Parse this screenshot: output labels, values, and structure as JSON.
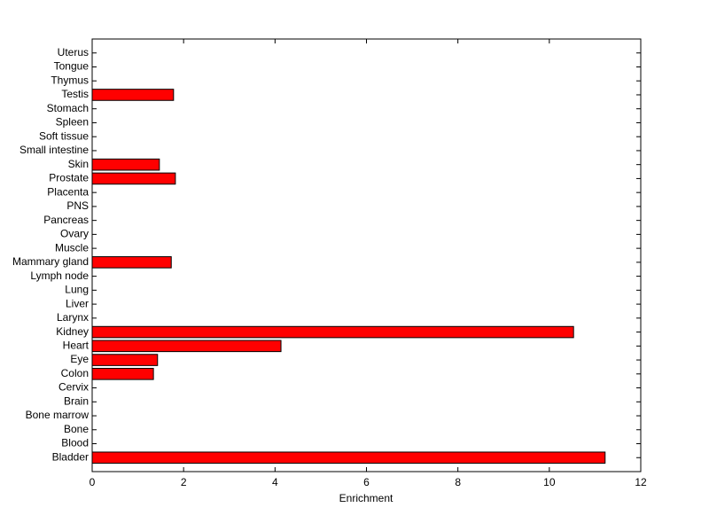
{
  "chart_data": {
    "type": "barh",
    "xlabel": "Enrichment",
    "categories": [
      "Bladder",
      "Blood",
      "Bone",
      "Bone marrow",
      "Brain",
      "Cervix",
      "Colon",
      "Eye",
      "Heart",
      "Kidney",
      "Larynx",
      "Liver",
      "Lung",
      "Lymph node",
      "Mammary gland",
      "Muscle",
      "Ovary",
      "Pancreas",
      "PNS",
      "Placenta",
      "Prostate",
      "Skin",
      "Small intestine",
      "Soft tissue",
      "Spleen",
      "Stomach",
      "Testis",
      "Thymus",
      "Tongue",
      "Uterus"
    ],
    "values": [
      11.22,
      0,
      0,
      0,
      0,
      0,
      1.34,
      1.43,
      4.13,
      10.53,
      0,
      0,
      0,
      0,
      1.73,
      0,
      0,
      0,
      0,
      0,
      1.82,
      1.47,
      0,
      0,
      0,
      0,
      1.78,
      0,
      0,
      0
    ],
    "color": "#ff0000",
    "xlim": [
      0,
      12
    ],
    "xticks": [
      0,
      2,
      4,
      6,
      8,
      10,
      12
    ]
  }
}
